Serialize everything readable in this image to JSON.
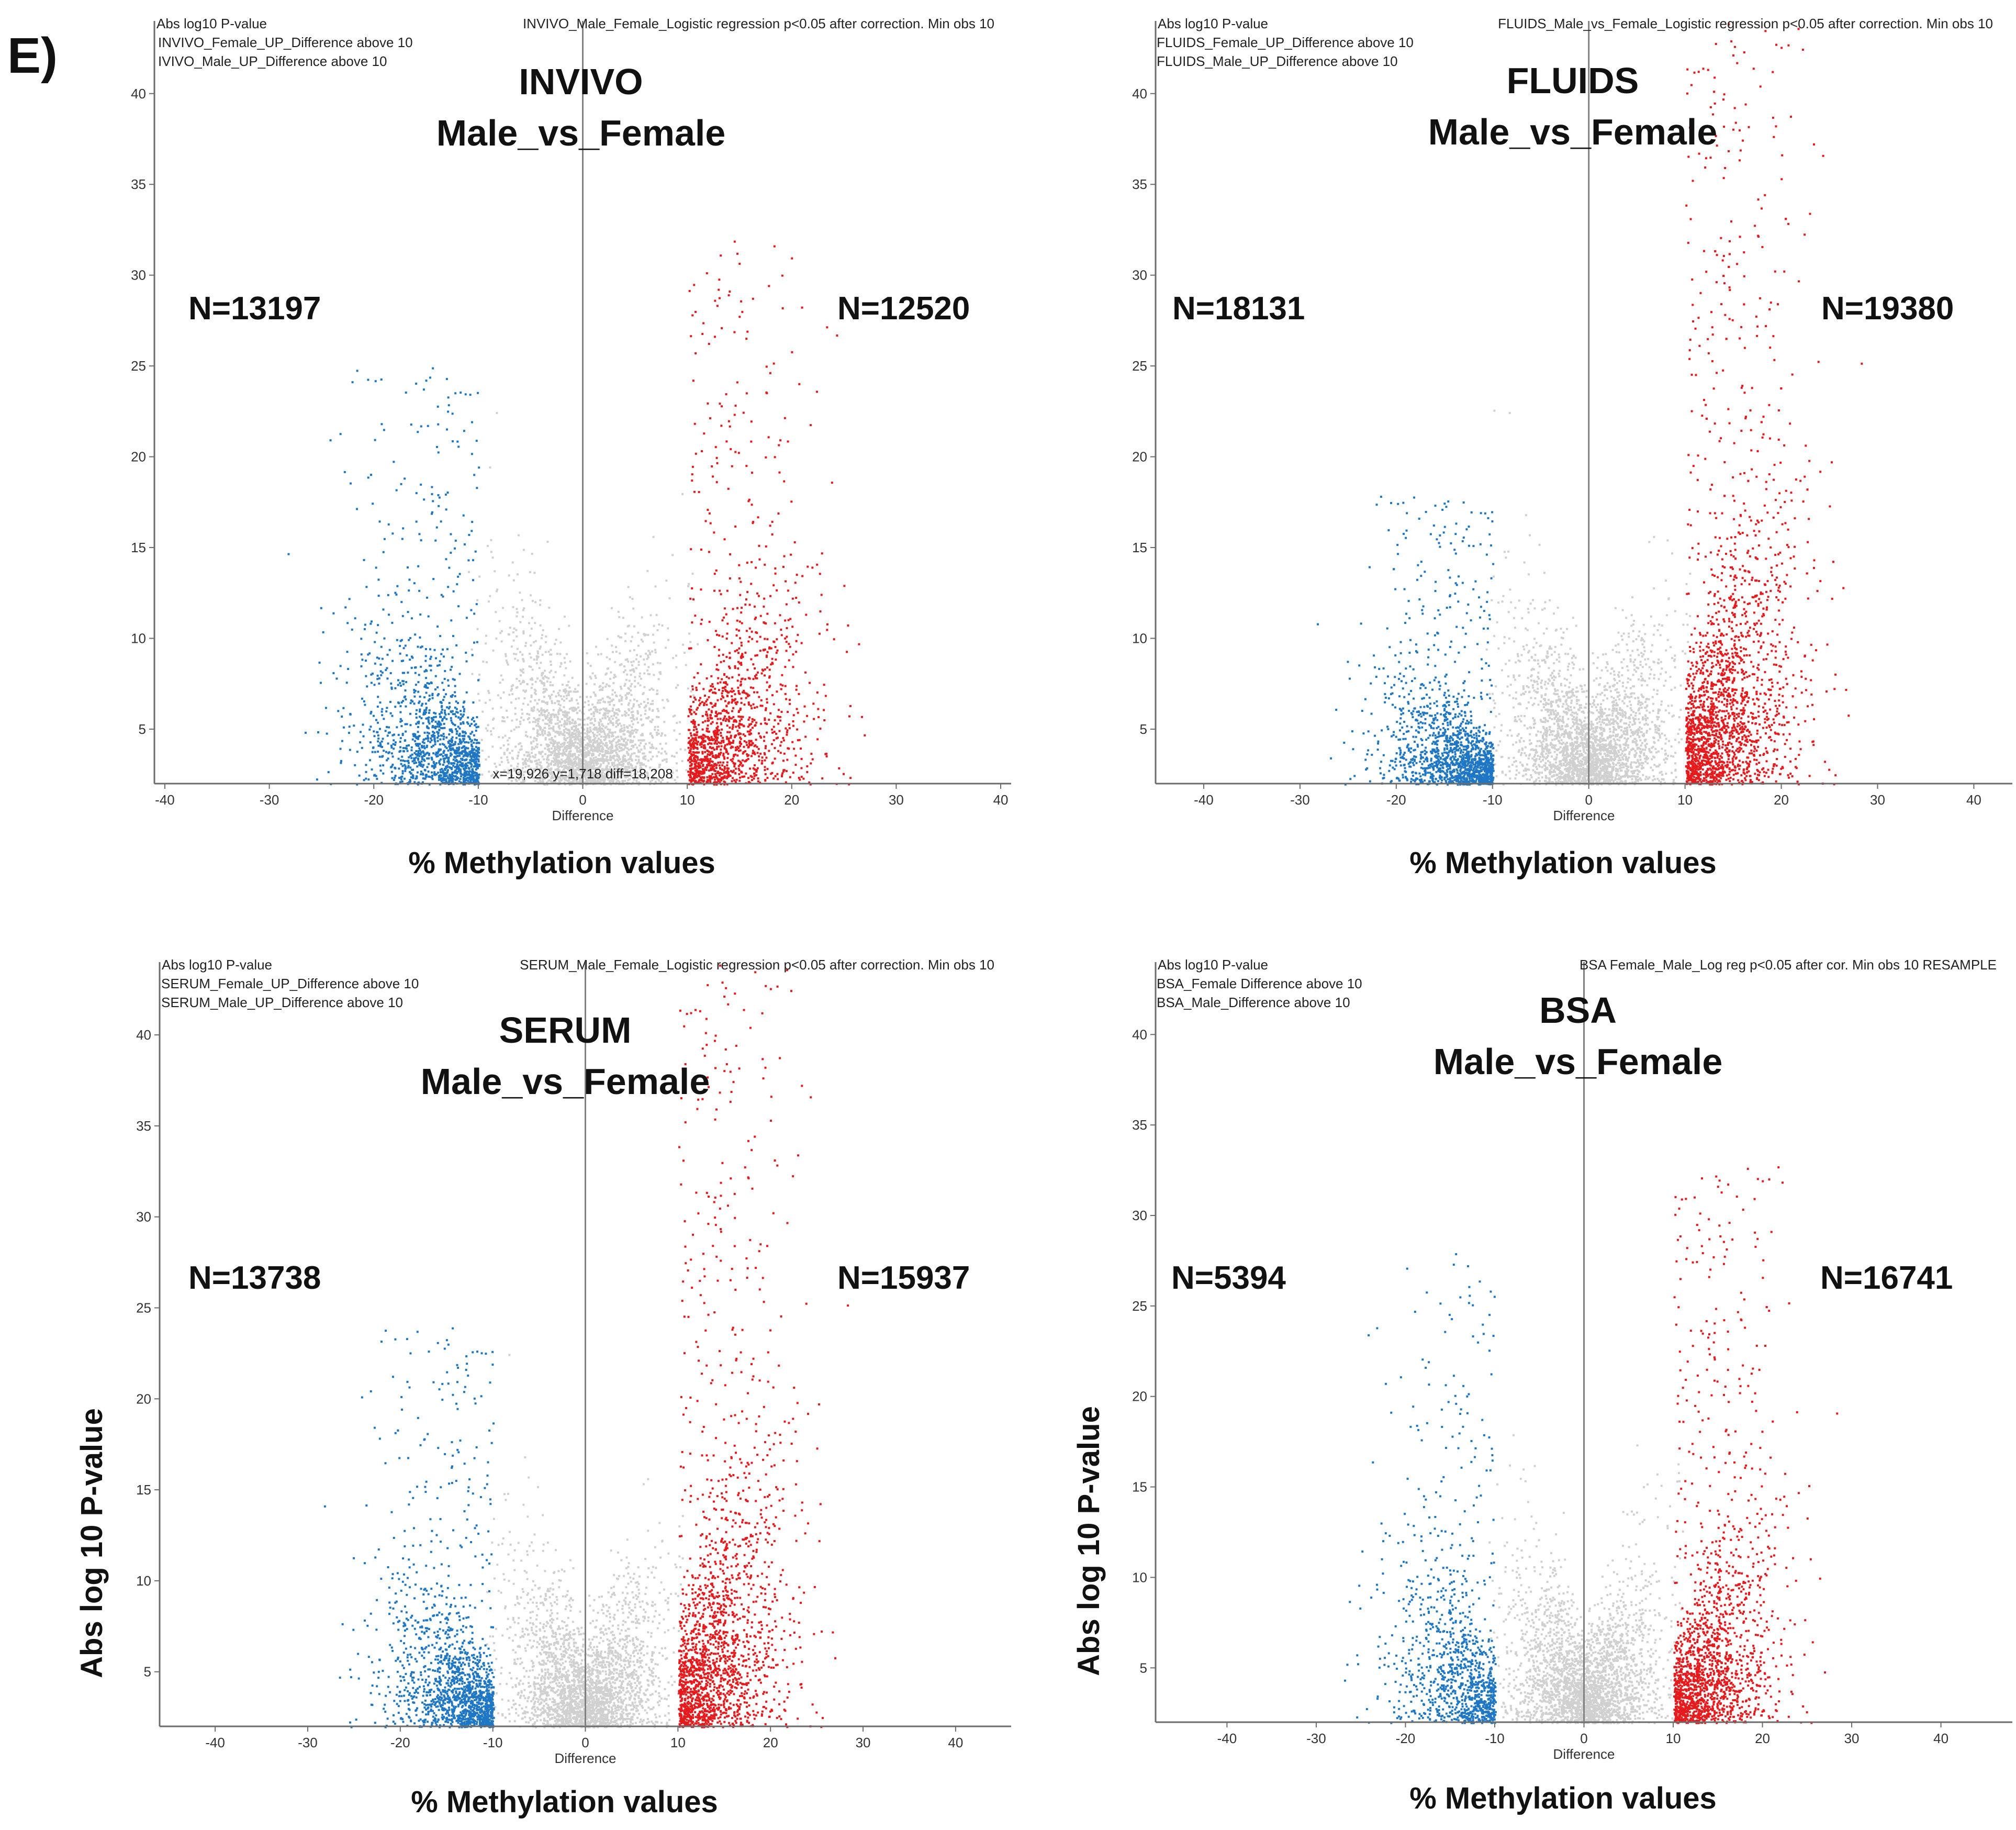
{
  "panel_letter": "E)",
  "colors": {
    "female": "#1f77c4",
    "male": "#e41a1c",
    "background_points": "#d0d0d0",
    "axis": "#6b6b6b"
  },
  "chart_data": [
    {
      "type": "scatter",
      "title": "INVIVO",
      "subtitle": "Male_vs_Female",
      "header": "INVIVO_Male_Female_Logistic regression p<0.05 after correction. Min obs 10",
      "y_series_label": "Abs log10 P-value",
      "legend": [
        "INVIVO_Female_UP_Difference above 10",
        "IVIVO_Male_UP_Difference above 10"
      ],
      "n_left": "N=13197",
      "n_right": "N=12520",
      "xlabel": "Difference",
      "caption": "% Methylation values",
      "ylabel": "",
      "annotation": "x=19,926 y=1,718 diff=18,208",
      "xlim": [
        -41,
        41
      ],
      "ylim": [
        2,
        44
      ],
      "xticks": [
        -40,
        -30,
        -20,
        -10,
        0,
        10,
        20,
        30,
        40
      ],
      "yticks": [
        5,
        10,
        15,
        20,
        25,
        30,
        35,
        40
      ],
      "clusters": {
        "female": {
          "x_range": [
            -33,
            -10
          ],
          "center": -13,
          "peak_y": 25,
          "count": 1400
        },
        "male": {
          "x_range": [
            10,
            33
          ],
          "center": 13,
          "peak_y": 32,
          "count": 1400
        }
      }
    },
    {
      "type": "scatter",
      "title": "FLUIDS",
      "subtitle": "Male_vs_Female",
      "header": "FLUIDS_Male_vs_Female_Logistic regression p<0.05 after correction. Min obs 10",
      "y_series_label": "Abs log10 P-value",
      "legend": [
        "FLUIDS_Female_UP_Difference above 10",
        "FLUIDS_Male_UP_Difference above 10"
      ],
      "n_left": "N=18131",
      "n_right": "N=19380",
      "xlabel": "Difference",
      "caption": "% Methylation values",
      "ylabel": "",
      "annotation": "",
      "xlim": [
        -45,
        44
      ],
      "ylim": [
        2,
        44
      ],
      "xticks": [
        -40,
        -30,
        -20,
        -10,
        0,
        10,
        20,
        30,
        40
      ],
      "yticks": [
        5,
        10,
        15,
        20,
        25,
        30,
        35,
        40
      ],
      "clusters": {
        "female": {
          "x_range": [
            -33,
            -10
          ],
          "center": -14,
          "peak_y": 18,
          "count": 1500
        },
        "male": {
          "x_range": [
            10,
            30
          ],
          "center": 15,
          "peak_y": 44,
          "count": 2200
        }
      }
    },
    {
      "type": "scatter",
      "title": "SERUM",
      "subtitle": "Male_vs_Female",
      "header": "SERUM_Male_Female_Logistic regression p<0.05 after correction. Min obs 10",
      "y_series_label": "Abs log10 P-value",
      "legend": [
        "SERUM_Female_UP_Difference above 10",
        "SERUM_Male_UP_Difference above 10"
      ],
      "n_left": "N=13738",
      "n_right": "N=15937",
      "xlabel": "Difference",
      "caption": "% Methylation values",
      "ylabel": "Abs log 10 P-value",
      "annotation": "",
      "xlim": [
        -46,
        46
      ],
      "ylim": [
        2,
        44
      ],
      "xticks": [
        -40,
        -30,
        -20,
        -10,
        0,
        10,
        20,
        30,
        40
      ],
      "yticks": [
        5,
        10,
        15,
        20,
        25,
        30,
        35,
        40
      ],
      "clusters": {
        "female": {
          "x_range": [
            -32,
            -10
          ],
          "center": -12,
          "peak_y": 24,
          "count": 1500
        },
        "male": {
          "x_range": [
            10,
            30
          ],
          "center": 13,
          "peak_y": 44,
          "count": 1900
        }
      }
    },
    {
      "type": "scatter",
      "title": "BSA",
      "subtitle": "Male_vs_Female",
      "header": "BSA Female_Male_Log reg p<0.05 after cor. Min obs 10 RESAMPLE",
      "y_series_label": "Abs log10 P-value",
      "legend": [
        "BSA_Female Difference above 10",
        "BSA_Male_Difference above 10"
      ],
      "n_left": "N=5394",
      "n_right": "N=16741",
      "xlabel": "Difference",
      "caption": "% Methylation values",
      "ylabel": "Abs log 10 P-value",
      "annotation": "",
      "xlim": [
        -48,
        48
      ],
      "ylim": [
        2,
        44
      ],
      "xticks": [
        -40,
        -30,
        -20,
        -10,
        0,
        10,
        20,
        30,
        40
      ],
      "yticks": [
        5,
        10,
        15,
        20,
        25,
        30,
        35,
        40
      ],
      "clusters": {
        "female": {
          "x_range": [
            -32,
            -10
          ],
          "center": -16,
          "peak_y": 28,
          "count": 1100
        },
        "male": {
          "x_range": [
            10,
            33
          ],
          "center": 14,
          "peak_y": 33,
          "count": 1700
        }
      }
    }
  ]
}
